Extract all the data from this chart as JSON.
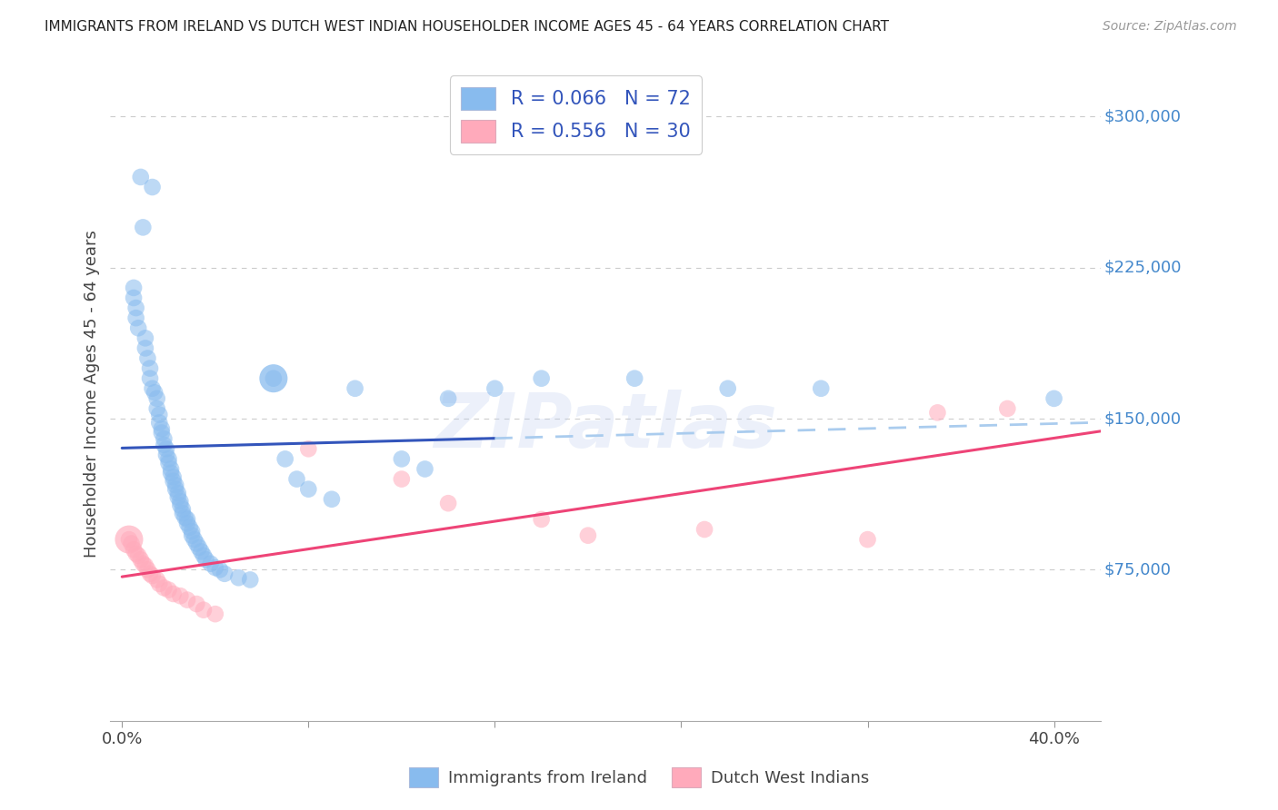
{
  "title": "IMMIGRANTS FROM IRELAND VS DUTCH WEST INDIAN HOUSEHOLDER INCOME AGES 45 - 64 YEARS CORRELATION CHART",
  "source": "Source: ZipAtlas.com",
  "ylabel": "Householder Income Ages 45 - 64 years",
  "ylim": [
    0,
    325000
  ],
  "xlim": [
    -0.005,
    0.42
  ],
  "ytick_values": [
    75000,
    150000,
    225000,
    300000
  ],
  "ytick_labels": [
    "$75,000",
    "$150,000",
    "$225,000",
    "$300,000"
  ],
  "background_color": "#ffffff",
  "grid_color": "#cccccc",
  "blue_scatter_color": "#88bbee",
  "pink_scatter_color": "#ffaabb",
  "blue_line_color": "#3355bb",
  "pink_line_color": "#ee4477",
  "blue_dashed_color": "#aaccee",
  "right_label_color": "#4488cc",
  "legend_text_color": "#3355bb",
  "legend_R_blue": "0.066",
  "legend_N_blue": "72",
  "legend_R_pink": "0.556",
  "legend_N_pink": "30",
  "legend_label_blue": "Immigrants from Ireland",
  "legend_label_pink": "Dutch West Indians",
  "watermark": "ZIPatlas",
  "blue_x": [
    0.008,
    0.013,
    0.009,
    0.005,
    0.005,
    0.006,
    0.006,
    0.007,
    0.01,
    0.01,
    0.011,
    0.012,
    0.012,
    0.013,
    0.014,
    0.015,
    0.015,
    0.016,
    0.016,
    0.017,
    0.017,
    0.018,
    0.018,
    0.019,
    0.019,
    0.02,
    0.02,
    0.021,
    0.021,
    0.022,
    0.022,
    0.023,
    0.023,
    0.024,
    0.024,
    0.025,
    0.025,
    0.026,
    0.026,
    0.027,
    0.028,
    0.028,
    0.029,
    0.03,
    0.03,
    0.031,
    0.032,
    0.033,
    0.034,
    0.035,
    0.036,
    0.038,
    0.04,
    0.042,
    0.044,
    0.05,
    0.055,
    0.065,
    0.07,
    0.075,
    0.08,
    0.09,
    0.1,
    0.12,
    0.13,
    0.14,
    0.16,
    0.18,
    0.22,
    0.26,
    0.3,
    0.4
  ],
  "blue_y": [
    270000,
    265000,
    245000,
    215000,
    210000,
    205000,
    200000,
    195000,
    190000,
    185000,
    180000,
    175000,
    170000,
    165000,
    163000,
    160000,
    155000,
    152000,
    148000,
    145000,
    143000,
    140000,
    137000,
    135000,
    132000,
    130000,
    128000,
    125000,
    123000,
    121000,
    119000,
    117000,
    115000,
    113000,
    111000,
    109000,
    107000,
    105000,
    103000,
    101000,
    100000,
    98000,
    96000,
    94000,
    92000,
    90000,
    88000,
    86000,
    84000,
    82000,
    80000,
    78000,
    76000,
    75000,
    73000,
    71000,
    70000,
    170000,
    130000,
    120000,
    115000,
    110000,
    165000,
    130000,
    125000,
    160000,
    165000,
    170000,
    170000,
    165000,
    165000,
    160000
  ],
  "blue_large_dot_x": [
    0.065
  ],
  "blue_large_dot_y": [
    170000
  ],
  "pink_x": [
    0.003,
    0.004,
    0.005,
    0.006,
    0.007,
    0.008,
    0.009,
    0.01,
    0.011,
    0.012,
    0.013,
    0.015,
    0.016,
    0.018,
    0.02,
    0.022,
    0.025,
    0.028,
    0.032,
    0.035,
    0.04,
    0.08,
    0.12,
    0.14,
    0.18,
    0.2,
    0.25,
    0.32,
    0.35,
    0.38
  ],
  "pink_y": [
    90000,
    88000,
    85000,
    83000,
    82000,
    80000,
    78000,
    77000,
    75000,
    73000,
    72000,
    70000,
    68000,
    66000,
    65000,
    63000,
    62000,
    60000,
    58000,
    55000,
    53000,
    135000,
    120000,
    108000,
    100000,
    92000,
    95000,
    90000,
    153000,
    155000
  ],
  "pink_large_dot_x": [
    0.003
  ],
  "pink_large_dot_y": [
    90000
  ]
}
